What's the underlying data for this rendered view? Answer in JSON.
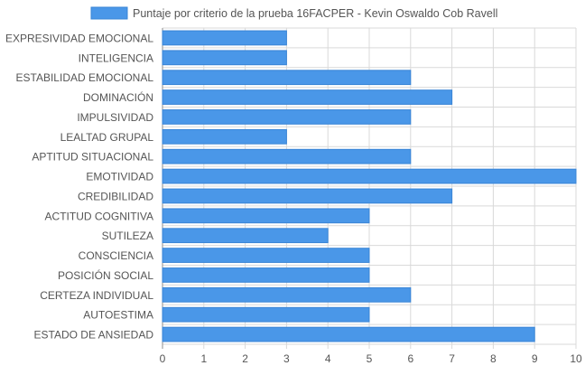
{
  "chart_data": {
    "type": "bar",
    "orientation": "horizontal",
    "legend": {
      "placement": "top-center"
    },
    "series": [
      {
        "name": "Puntaje por criterio de la prueba 16FACPER - Kevin Oswaldo Cob Ravell",
        "color": "#4a97e8",
        "border_color": "#3a85d6",
        "values": [
          3,
          3,
          6,
          7,
          6,
          3,
          6,
          10,
          7,
          5,
          4,
          5,
          5,
          6,
          5,
          9
        ]
      }
    ],
    "categories": [
      "EXPRESIVIDAD EMOCIONAL",
      "INTELIGENCIA",
      "ESTABILIDAD EMOCIONAL",
      "DOMINACIÓN",
      "IMPULSIVIDAD",
      "LEALTAD GRUPAL",
      "APTITUD SITUACIONAL",
      "EMOTIVIDAD",
      "CREDIBILIDAD",
      "ACTITUD COGNITIVA",
      "SUTILEZA",
      "CONSCIENCIA",
      "POSICIÓN SOCIAL",
      "CERTEZA INDIVIDUAL",
      "AUTOESTIMA",
      "ESTADO DE ANSIEDAD"
    ],
    "xlim": [
      0,
      10
    ],
    "xticks": [
      "0",
      "1",
      "2",
      "3",
      "4",
      "5",
      "6",
      "7",
      "8",
      "9",
      "10"
    ],
    "grid": true,
    "grid_color": "#d9d9d9",
    "label_color": "#555555"
  }
}
